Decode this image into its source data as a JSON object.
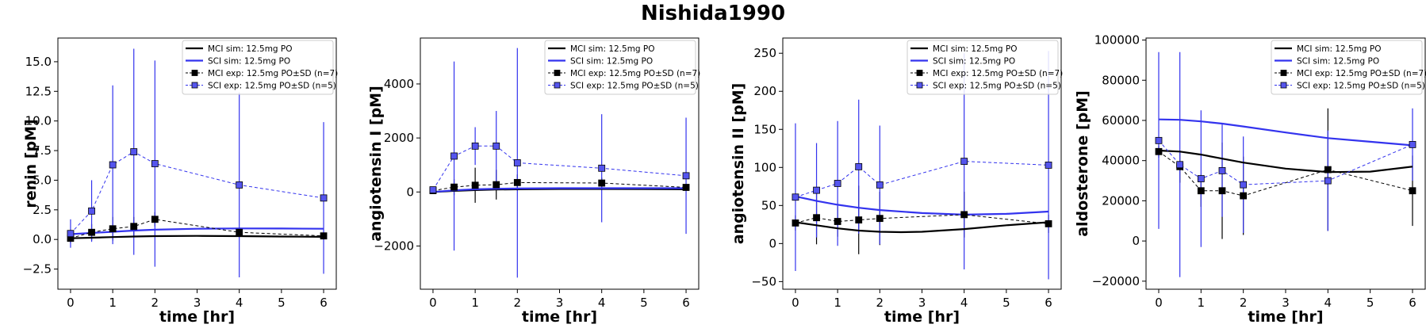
{
  "figure": {
    "title": "Nishida1990",
    "colors": {
      "mci": "#000000",
      "sci": "#3333ee",
      "sci_marker": "#5555ee"
    }
  },
  "legend": [
    {
      "label": "MCI sim: 12.5mg PO",
      "kind": "line",
      "group": "mci"
    },
    {
      "label": "SCI sim: 12.5mg PO",
      "kind": "line",
      "group": "sci"
    },
    {
      "label": "MCI exp: 12.5mg PO±SD (n=7)",
      "kind": "marker",
      "group": "mci"
    },
    {
      "label": "SCI exp: 12.5mg PO±SD (n=5)",
      "kind": "marker",
      "group": "sci"
    }
  ],
  "chart_data": [
    {
      "type": "line",
      "title": "",
      "xlabel": "time [hr]",
      "ylabel": "renin [pM]",
      "xlim": [
        -0.3,
        6.3
      ],
      "ylim": [
        -4.2,
        17.0
      ],
      "xticks": [
        0,
        1,
        2,
        3,
        4,
        5,
        6
      ],
      "xtick_labels": [
        "0",
        "1",
        "2",
        "3",
        "4",
        "5",
        "6"
      ],
      "yticks": [
        -2.5,
        0,
        2.5,
        5,
        7.5,
        10,
        12.5,
        15
      ],
      "ytick_labels": [
        "−2.5",
        "0.0",
        "2.5",
        "5.0",
        "7.5",
        "10.0",
        "12.5",
        "15.0"
      ],
      "legend_position": "top-right",
      "grid": false,
      "series": [
        {
          "name": "MCI sim: 12.5mg PO",
          "kind": "sim",
          "group": "mci",
          "x": [
            0,
            0.5,
            1,
            1.5,
            2,
            3,
            4,
            5,
            6
          ],
          "y": [
            0.1,
            0.15,
            0.2,
            0.25,
            0.28,
            0.3,
            0.28,
            0.25,
            0.22
          ]
        },
        {
          "name": "SCI sim: 12.5mg PO",
          "kind": "sim",
          "group": "sci",
          "x": [
            0,
            0.5,
            1,
            1.5,
            2,
            3,
            4,
            5,
            6
          ],
          "y": [
            0.45,
            0.55,
            0.65,
            0.75,
            0.82,
            0.9,
            0.93,
            0.92,
            0.9
          ]
        },
        {
          "name": "MCI exp: 12.5mg PO±SD (n=7)",
          "kind": "exp",
          "group": "mci",
          "x": [
            0,
            0.5,
            1,
            1.5,
            2,
            4,
            6
          ],
          "y": [
            0.1,
            0.6,
            0.9,
            1.1,
            1.7,
            0.6,
            0.3
          ],
          "sd": [
            0.4,
            0.7,
            1.0,
            0.8,
            0.6,
            0.4,
            0.3
          ]
        },
        {
          "name": "SCI exp: 12.5mg PO±SD (n=5)",
          "kind": "exp",
          "group": "sci",
          "x": [
            0,
            0.5,
            1,
            1.5,
            2,
            4,
            6
          ],
          "y": [
            0.5,
            2.4,
            6.3,
            7.4,
            6.4,
            4.6,
            3.5
          ],
          "sd": [
            1.2,
            2.6,
            6.7,
            8.7,
            8.7,
            7.8,
            6.4
          ]
        }
      ]
    },
    {
      "type": "line",
      "title": "",
      "xlabel": "time [hr]",
      "ylabel": "angiotensin I [pM]",
      "xlim": [
        -0.3,
        6.3
      ],
      "ylim": [
        -3600,
        5700
      ],
      "xticks": [
        0,
        1,
        2,
        3,
        4,
        5,
        6
      ],
      "xtick_labels": [
        "0",
        "1",
        "2",
        "3",
        "4",
        "5",
        "6"
      ],
      "yticks": [
        -2000,
        0,
        2000,
        4000
      ],
      "ytick_labels": [
        "−2000",
        "0",
        "2000",
        "4000"
      ],
      "legend_position": "top-right",
      "grid": false,
      "series": [
        {
          "name": "MCI sim: 12.5mg PO",
          "kind": "sim",
          "group": "mci",
          "x": [
            0,
            0.5,
            1,
            1.5,
            2,
            3,
            4,
            5,
            6
          ],
          "y": [
            0,
            40,
            70,
            90,
            100,
            110,
            110,
            105,
            100
          ]
        },
        {
          "name": "SCI sim: 12.5mg PO",
          "kind": "sim",
          "group": "sci",
          "x": [
            0,
            0.5,
            1,
            1.5,
            2,
            3,
            4,
            5,
            6
          ],
          "y": [
            0,
            60,
            100,
            120,
            130,
            140,
            140,
            140,
            140
          ]
        },
        {
          "name": "MCI exp: 12.5mg PO±SD (n=7)",
          "kind": "exp",
          "group": "mci",
          "x": [
            0,
            0.5,
            1,
            1.5,
            2,
            4,
            6
          ],
          "y": [
            50,
            180,
            250,
            270,
            350,
            330,
            170
          ],
          "sd": [
            100,
            300,
            650,
            550,
            300,
            200,
            100
          ]
        },
        {
          "name": "SCI exp: 12.5mg PO±SD (n=5)",
          "kind": "exp",
          "group": "sci",
          "x": [
            0,
            0.5,
            1,
            1.5,
            2,
            4,
            6
          ],
          "y": [
            80,
            1330,
            1700,
            1700,
            1080,
            880,
            600
          ],
          "sd": [
            100,
            3500,
            700,
            1300,
            4250,
            2000,
            2150
          ]
        }
      ]
    },
    {
      "type": "line",
      "title": "",
      "xlabel": "time [hr]",
      "ylabel": "angiotensin II [pM]",
      "xlim": [
        -0.3,
        6.3
      ],
      "ylim": [
        -60,
        270
      ],
      "xticks": [
        0,
        1,
        2,
        3,
        4,
        5,
        6
      ],
      "xtick_labels": [
        "0",
        "1",
        "2",
        "3",
        "4",
        "5",
        "6"
      ],
      "yticks": [
        -50,
        0,
        50,
        100,
        150,
        200,
        250
      ],
      "ytick_labels": [
        "−50",
        "0",
        "50",
        "100",
        "150",
        "200",
        "250"
      ],
      "legend_position": "top-right",
      "grid": false,
      "series": [
        {
          "name": "MCI sim: 12.5mg PO",
          "kind": "sim",
          "group": "mci",
          "x": [
            0,
            0.5,
            1,
            1.5,
            2,
            2.5,
            3,
            4,
            5,
            6
          ],
          "y": [
            28,
            24,
            20,
            17,
            15.5,
            15,
            15.5,
            19,
            24,
            28
          ]
        },
        {
          "name": "SCI sim: 12.5mg PO",
          "kind": "sim",
          "group": "sci",
          "x": [
            0,
            0.5,
            1,
            1.5,
            2,
            3,
            4,
            5,
            6
          ],
          "y": [
            62,
            56,
            51,
            47,
            44,
            40,
            38,
            39,
            42
          ]
        },
        {
          "name": "MCI exp: 12.5mg PO±SD (n=7)",
          "kind": "exp",
          "group": "mci",
          "x": [
            0,
            0.5,
            1,
            1.5,
            2,
            4,
            6
          ],
          "y": [
            27,
            34,
            29,
            31,
            33,
            38,
            26
          ],
          "sd": [
            10,
            35,
            20,
            45,
            35,
            30,
            12
          ]
        },
        {
          "name": "SCI exp: 12.5mg PO±SD (n=5)",
          "kind": "exp",
          "group": "sci",
          "x": [
            0,
            0.5,
            1,
            1.5,
            2,
            4,
            6
          ],
          "y": [
            61,
            70,
            79,
            101,
            77,
            108,
            103
          ],
          "sd": [
            97,
            62,
            82,
            88,
            78,
            142,
            150
          ]
        }
      ]
    },
    {
      "type": "line",
      "title": "",
      "xlabel": "time [hr]",
      "ylabel": "aldosterone [pM]",
      "xlim": [
        -0.3,
        6.3
      ],
      "ylim": [
        -24000,
        101000
      ],
      "xticks": [
        0,
        1,
        2,
        3,
        4,
        5,
        6
      ],
      "xtick_labels": [
        "0",
        "1",
        "2",
        "3",
        "4",
        "5",
        "6"
      ],
      "yticks": [
        -20000,
        0,
        20000,
        40000,
        60000,
        80000,
        100000
      ],
      "ytick_labels": [
        "−20000",
        "0",
        "20000",
        "40000",
        "60000",
        "80000",
        "100000"
      ],
      "legend_position": "top-right",
      "grid": false,
      "series": [
        {
          "name": "MCI sim: 12.5mg PO",
          "kind": "sim",
          "group": "mci",
          "x": [
            0,
            0.5,
            1,
            1.5,
            2,
            3,
            4,
            5,
            6
          ],
          "y": [
            45000,
            44500,
            43000,
            41000,
            39000,
            36000,
            34300,
            34500,
            37000
          ]
        },
        {
          "name": "SCI sim: 12.5mg PO",
          "kind": "sim",
          "group": "sci",
          "x": [
            0,
            0.5,
            1,
            1.5,
            2,
            3,
            4,
            5,
            6
          ],
          "y": [
            60500,
            60300,
            59500,
            58400,
            57000,
            54000,
            51200,
            49400,
            47600
          ]
        },
        {
          "name": "MCI exp: 12.5mg PO±SD (n=7)",
          "kind": "exp",
          "group": "mci",
          "x": [
            0,
            0.5,
            1,
            1.5,
            2,
            4,
            6
          ],
          "y": [
            44500,
            37000,
            25000,
            25000,
            22500,
            35500,
            25000
          ],
          "sd": [
            3000,
            8000,
            8000,
            24000,
            19500,
            30500,
            17500
          ]
        },
        {
          "name": "SCI exp: 12.5mg PO±SD (n=5)",
          "kind": "exp",
          "group": "sci",
          "x": [
            0,
            0.5,
            1,
            1.5,
            2,
            4,
            6
          ],
          "y": [
            50000,
            38000,
            31000,
            35000,
            28000,
            30000,
            48000
          ],
          "sd": [
            44000,
            56000,
            34000,
            23000,
            24000,
            25000,
            18000
          ]
        }
      ]
    }
  ]
}
